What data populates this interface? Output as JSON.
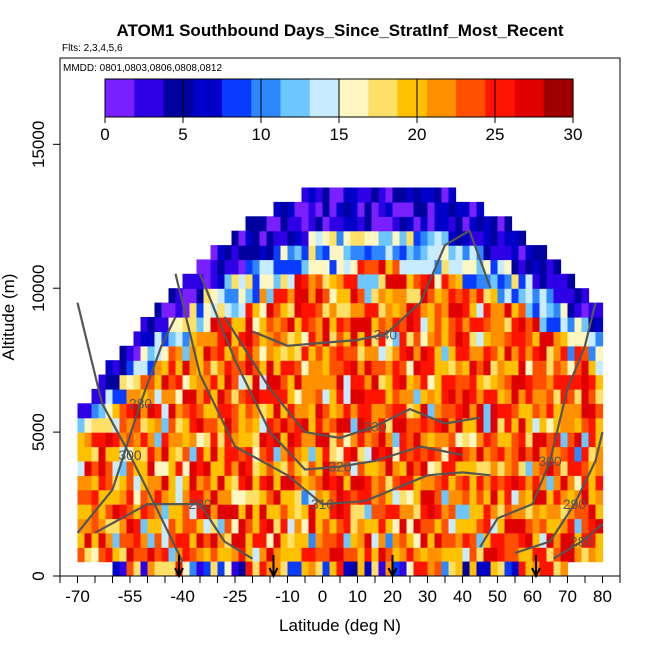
{
  "chart_data": {
    "type": "heatmap",
    "title": "ATOM1 Southbound Days_Since_StratInf_Most_Recent",
    "subtitle_flights": "Flts: 2,3,4,5,6",
    "subtitle_dates": "MMDD: 0801,0803,0806,0808,0812",
    "xlabel": "Latitude (deg N)",
    "ylabel": "Altitude (m)",
    "x_ticks": [
      -70,
      -55,
      -40,
      -25,
      -10,
      0,
      10,
      20,
      30,
      40,
      50,
      60,
      70,
      80
    ],
    "y_ticks": [
      0,
      5000,
      10000,
      15000
    ],
    "x_range": [
      -75,
      85
    ],
    "y_range": [
      0,
      18000
    ],
    "colorbar": {
      "min": 0,
      "max": 30,
      "ticks": [
        0,
        5,
        10,
        15,
        20,
        25,
        30
      ],
      "colors": [
        "#7a1fff",
        "#2e00e6",
        "#00009e",
        "#0000c8",
        "#0a3cff",
        "#2f87ff",
        "#6ec6ff",
        "#c8ecff",
        "#fff7c2",
        "#ffe066",
        "#ffc000",
        "#ff9000",
        "#ff5000",
        "#ff1400",
        "#e00000",
        "#9e0000"
      ]
    },
    "theta_contours": [
      {
        "label": "280",
        "points": [
          [
            -70,
            1500
          ],
          [
            -60,
            3000
          ],
          [
            -52,
            6000
          ],
          [
            -46,
            8000
          ],
          [
            -42,
            9000
          ]
        ]
      },
      {
        "label": "290",
        "points": [
          [
            -65,
            1500
          ],
          [
            -50,
            2500
          ],
          [
            -35,
            2500
          ],
          [
            -28,
            1200
          ],
          [
            -20,
            600
          ]
        ]
      },
      {
        "label": "300",
        "points": [
          [
            -70,
            9500
          ],
          [
            -63,
            6000
          ],
          [
            -55,
            4200
          ],
          [
            -48,
            2500
          ],
          [
            -40,
            500
          ]
        ]
      },
      {
        "label": "310",
        "points": [
          [
            -42,
            10500
          ],
          [
            -35,
            7000
          ],
          [
            -25,
            4500
          ],
          [
            -10,
            3500
          ],
          [
            0,
            2500
          ],
          [
            12,
            2600
          ],
          [
            30,
            3500
          ],
          [
            40,
            3600
          ],
          [
            48,
            3500
          ]
        ]
      },
      {
        "label": "320",
        "points": [
          [
            -35,
            10500
          ],
          [
            -25,
            7500
          ],
          [
            -15,
            5000
          ],
          [
            -5,
            3700
          ],
          [
            5,
            3800
          ],
          [
            15,
            4000
          ],
          [
            28,
            4500
          ],
          [
            40,
            4200
          ]
        ]
      },
      {
        "label": "330",
        "points": [
          [
            -28,
            9000
          ],
          [
            -15,
            6500
          ],
          [
            -5,
            5000
          ],
          [
            5,
            4800
          ],
          [
            15,
            5200
          ],
          [
            25,
            5800
          ],
          [
            35,
            5300
          ],
          [
            45,
            5500
          ]
        ]
      },
      {
        "label": "340",
        "points": [
          [
            -20,
            8500
          ],
          [
            -10,
            8000
          ],
          [
            0,
            8100
          ],
          [
            10,
            8200
          ],
          [
            18,
            8400
          ],
          [
            28,
            9500
          ],
          [
            35,
            11500
          ],
          [
            42,
            12000
          ],
          [
            48,
            10000
          ]
        ]
      },
      {
        "label": "300",
        "points": [
          [
            45,
            1000
          ],
          [
            50,
            2000
          ],
          [
            60,
            2500
          ],
          [
            65,
            4000
          ],
          [
            70,
            6500
          ],
          [
            75,
            8000
          ],
          [
            78,
            9500
          ]
        ]
      },
      {
        "label": "290",
        "points": [
          [
            55,
            800
          ],
          [
            65,
            1200
          ],
          [
            72,
            2500
          ],
          [
            78,
            4000
          ],
          [
            80,
            5000
          ]
        ]
      },
      {
        "label": "280",
        "points": [
          [
            66,
            600
          ],
          [
            74,
            1200
          ],
          [
            80,
            1800
          ]
        ]
      }
    ],
    "arrows_latitude": [
      -41,
      -14,
      20,
      61
    ]
  }
}
